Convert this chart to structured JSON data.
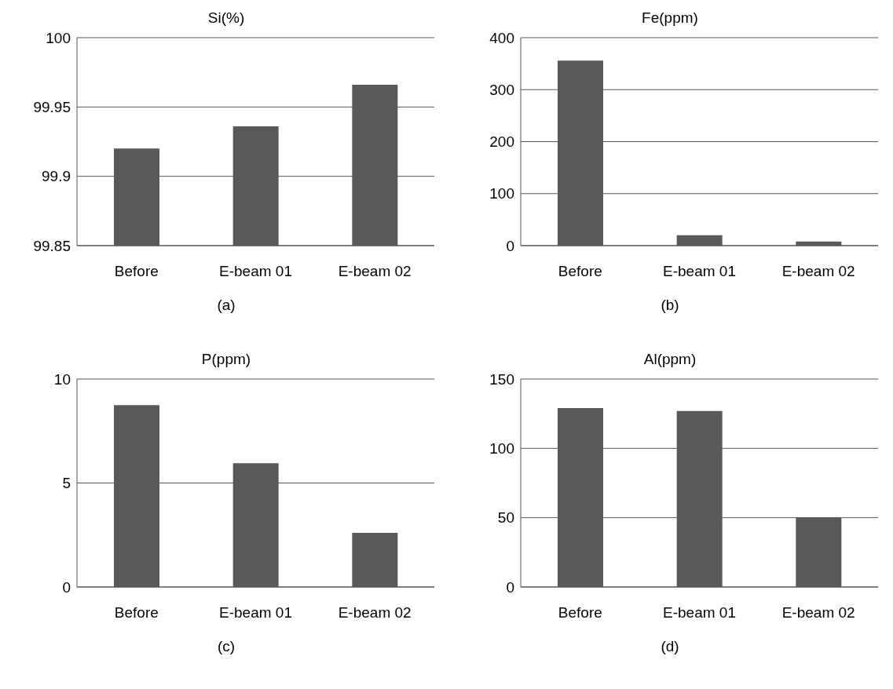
{
  "chart_data": [
    {
      "type": "bar",
      "title": "Si(%)",
      "xlabel": "(a)",
      "categories": [
        "Before",
        "E-beam 01",
        "E-beam 02"
      ],
      "values": [
        99.92,
        99.936,
        99.966
      ],
      "color": "#595959",
      "ylim": [
        99.85,
        100
      ],
      "yticks": [
        99.85,
        99.9,
        99.95,
        100
      ],
      "grid": "y"
    },
    {
      "type": "bar",
      "title": "Fe(ppm)",
      "xlabel": "(b)",
      "categories": [
        "Before",
        "E-beam 01",
        "E-beam 02"
      ],
      "values": [
        356,
        20,
        8
      ],
      "color": "#595959",
      "ylim": [
        0,
        400
      ],
      "yticks": [
        0,
        100,
        200,
        300,
        400
      ],
      "grid": "y"
    },
    {
      "type": "bar",
      "title": "P(ppm)",
      "xlabel": "(c)",
      "categories": [
        "Before",
        "E-beam 01",
        "E-beam 02"
      ],
      "values": [
        8.75,
        5.95,
        2.6
      ],
      "color": "#595959",
      "ylim": [
        0,
        10
      ],
      "yticks": [
        0,
        5,
        10
      ],
      "grid": "y"
    },
    {
      "type": "bar",
      "title": "Al(ppm)",
      "xlabel": "(d)",
      "categories": [
        "Before",
        "E-beam 01",
        "E-beam 02"
      ],
      "values": [
        129,
        127,
        50
      ],
      "color": "#595959",
      "ylim": [
        0,
        150
      ],
      "yticks": [
        0,
        50,
        100,
        150
      ],
      "grid": "y"
    }
  ]
}
